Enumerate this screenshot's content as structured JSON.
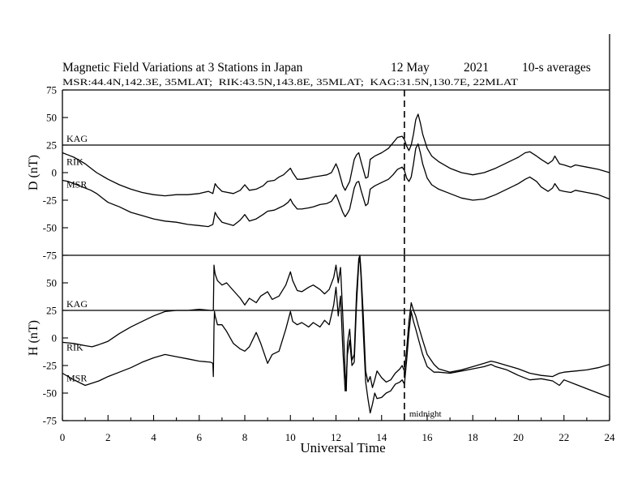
{
  "header": {
    "title": "Magnetic Field Variations at 3 Stations in Japan",
    "date": "12 May",
    "year": "2021",
    "averaging": "10-s averages",
    "stations": "MSR:44.4N,142.3E, 35MLAT;  RIK:43.5N,143.8E, 35MLAT;  KAG:31.5N,130.7E, 22MLAT"
  },
  "chart_data": [
    {
      "type": "line",
      "ylabel": "D (nT)",
      "xlim": [
        0,
        24
      ],
      "ylim": [
        -75,
        75
      ],
      "yticks": [
        75,
        50,
        25,
        0,
        -25,
        -50,
        -75
      ],
      "grid": false,
      "vline": {
        "x": 15,
        "style": "dashed"
      },
      "series": [
        {
          "name": "KAG",
          "x": [
            0,
            24
          ],
          "y": [
            25,
            25
          ]
        },
        {
          "name": "RIK",
          "x": [
            0,
            0.25,
            0.5,
            0.75,
            1,
            1.25,
            1.5,
            1.75,
            2,
            2.5,
            3,
            3.5,
            4,
            4.5,
            5,
            5.5,
            6,
            6.4,
            6.6,
            6.7,
            6.8,
            7,
            7.5,
            7.8,
            8,
            8.2,
            8.5,
            8.8,
            9,
            9.3,
            9.5,
            9.7,
            9.9,
            10,
            10.1,
            10.3,
            10.5,
            10.8,
            11,
            11.3,
            11.6,
            11.8,
            12,
            12.1,
            12.3,
            12.4,
            12.5,
            12.6,
            12.8,
            12.9,
            13,
            13.1,
            13.3,
            13.4,
            13.5,
            13.7,
            14,
            14.3,
            14.5,
            14.7,
            14.9,
            15,
            15.1,
            15.2,
            15.3,
            15.4,
            15.5,
            15.6,
            15.7,
            15.8,
            16,
            16.2,
            16.5,
            17,
            17.5,
            18,
            18.5,
            19,
            19.5,
            20,
            20.3,
            20.5,
            20.8,
            21,
            21.3,
            21.5,
            21.6,
            21.8,
            22,
            22.3,
            22.5,
            23,
            23.5,
            24
          ],
          "y": [
            18,
            16,
            14,
            11,
            8,
            4,
            0,
            -3,
            -6,
            -11,
            -15,
            -18,
            -20,
            -21,
            -20,
            -20,
            -19,
            -17,
            -19,
            -10,
            -13,
            -17,
            -19,
            -16,
            -11,
            -16,
            -15,
            -12,
            -8,
            -7,
            -4,
            -2,
            2,
            4,
            0,
            -6,
            -6,
            -5,
            -4,
            -3,
            -2,
            0,
            8,
            3,
            -12,
            -16,
            -12,
            -8,
            12,
            16,
            18,
            10,
            -5,
            -4,
            12,
            15,
            18,
            22,
            27,
            32,
            33,
            30,
            24,
            20,
            25,
            35,
            48,
            53,
            45,
            35,
            22,
            15,
            10,
            4,
            0,
            -2,
            0,
            4,
            9,
            14,
            18,
            19,
            15,
            12,
            8,
            11,
            15,
            8,
            7,
            5,
            7,
            5,
            3,
            0
          ]
        },
        {
          "name": "MSR",
          "x": [
            0,
            0.25,
            0.5,
            0.75,
            1,
            1.25,
            1.5,
            1.75,
            2,
            2.5,
            3,
            3.5,
            4,
            4.5,
            5,
            5.5,
            6,
            6.4,
            6.6,
            6.7,
            6.8,
            7,
            7.5,
            7.8,
            8,
            8.2,
            8.5,
            8.8,
            9,
            9.3,
            9.5,
            9.7,
            9.9,
            10,
            10.1,
            10.3,
            10.5,
            10.8,
            11,
            11.3,
            11.6,
            11.8,
            12,
            12.1,
            12.3,
            12.4,
            12.5,
            12.6,
            12.8,
            12.9,
            13,
            13.1,
            13.3,
            13.4,
            13.5,
            13.7,
            14,
            14.3,
            14.5,
            14.7,
            14.9,
            15,
            15.1,
            15.2,
            15.3,
            15.4,
            15.5,
            15.6,
            15.7,
            15.8,
            16,
            16.2,
            16.5,
            17,
            17.5,
            18,
            18.5,
            19,
            19.5,
            20,
            20.3,
            20.5,
            20.8,
            21,
            21.3,
            21.5,
            21.6,
            21.8,
            22,
            22.3,
            22.5,
            23,
            23.5,
            24
          ],
          "y": [
            -7,
            -8,
            -10,
            -12,
            -14,
            -16,
            -19,
            -23,
            -27,
            -31,
            -36,
            -39,
            -42,
            -44,
            -45,
            -47,
            -48,
            -49,
            -47,
            -36,
            -40,
            -45,
            -48,
            -43,
            -38,
            -44,
            -42,
            -38,
            -35,
            -34,
            -32,
            -30,
            -27,
            -24,
            -28,
            -33,
            -33,
            -32,
            -31,
            -29,
            -28,
            -26,
            -20,
            -25,
            -36,
            -40,
            -37,
            -33,
            -14,
            -9,
            -8,
            -16,
            -30,
            -28,
            -15,
            -12,
            -9,
            -6,
            -2,
            3,
            5,
            2,
            -5,
            -8,
            -4,
            8,
            22,
            26,
            18,
            8,
            -5,
            -11,
            -15,
            -19,
            -23,
            -25,
            -24,
            -20,
            -15,
            -10,
            -6,
            -4,
            -8,
            -13,
            -17,
            -14,
            -10,
            -16,
            -17,
            -18,
            -16,
            -18,
            -20,
            -24
          ]
        }
      ]
    },
    {
      "type": "line",
      "ylabel": "H (nT)",
      "xlabel": "Universal Time",
      "xlim": [
        0,
        24
      ],
      "ylim": [
        -75,
        75
      ],
      "xticks": [
        0,
        2,
        4,
        6,
        8,
        10,
        12,
        14,
        16,
        18,
        20,
        22,
        24
      ],
      "yticks": [
        50,
        25,
        0,
        -25,
        -50,
        -75
      ],
      "grid": false,
      "vline": {
        "x": 15,
        "style": "dashed",
        "label": "midnight"
      },
      "series": [
        {
          "name": "KAG",
          "x": [
            0,
            24
          ],
          "y": [
            25,
            25
          ]
        },
        {
          "name": "RIK",
          "x": [
            0,
            0.5,
            1,
            1.3,
            1.6,
            2,
            2.5,
            3,
            3.5,
            4,
            4.5,
            5,
            5.5,
            6,
            6.5,
            6.6,
            6.62,
            6.65,
            6.67,
            6.7,
            6.8,
            7,
            7.2,
            7.5,
            7.8,
            8,
            8.2,
            8.5,
            8.7,
            9,
            9.2,
            9.5,
            9.8,
            10,
            10.1,
            10.3,
            10.5,
            10.8,
            11,
            11.3,
            11.5,
            11.7,
            11.9,
            12,
            12.1,
            12.2,
            12.3,
            12.4,
            12.45,
            12.5,
            12.6,
            12.7,
            12.8,
            12.9,
            13,
            13.05,
            13.1,
            13.2,
            13.3,
            13.4,
            13.5,
            13.6,
            13.7,
            13.8,
            14,
            14.2,
            14.4,
            14.6,
            14.8,
            14.9,
            15,
            15.1,
            15.2,
            15.3,
            15.4,
            15.5,
            15.6,
            15.8,
            16,
            16.3,
            16.5,
            17,
            17.5,
            18,
            18.5,
            18.8,
            19,
            19.5,
            20,
            20.5,
            21,
            21.5,
            21.8,
            22,
            22.5,
            23,
            23.5,
            24
          ],
          "y": [
            -4,
            -5,
            -7,
            -8,
            -6,
            -3,
            4,
            10,
            15,
            20,
            24,
            25,
            25,
            26,
            25,
            25,
            25,
            66,
            62,
            58,
            52,
            48,
            50,
            43,
            36,
            30,
            36,
            32,
            38,
            42,
            35,
            38,
            48,
            60,
            52,
            43,
            42,
            46,
            48,
            44,
            40,
            44,
            55,
            66,
            50,
            64,
            20,
            -30,
            -48,
            -5,
            8,
            -20,
            -15,
            40,
            72,
            75,
            60,
            20,
            -30,
            -40,
            -35,
            -45,
            -38,
            -30,
            -36,
            -40,
            -38,
            -32,
            -28,
            -25,
            -30,
            -10,
            15,
            32,
            25,
            20,
            12,
            -2,
            -15,
            -24,
            -28,
            -31,
            -29,
            -26,
            -23,
            -21,
            -22,
            -25,
            -28,
            -32,
            -34,
            -35,
            -32,
            -31,
            -30,
            -29,
            -27,
            -24
          ]
        },
        {
          "name": "MSR",
          "x": [
            0,
            0.5,
            1,
            1.3,
            1.6,
            2,
            2.5,
            3,
            3.5,
            4,
            4.5,
            5,
            5.5,
            6,
            6.5,
            6.6,
            6.62,
            6.65,
            6.67,
            6.7,
            6.8,
            7,
            7.2,
            7.5,
            7.8,
            8,
            8.2,
            8.5,
            8.7,
            9,
            9.2,
            9.5,
            9.8,
            10,
            10.1,
            10.3,
            10.5,
            10.8,
            11,
            11.3,
            11.5,
            11.7,
            11.9,
            12,
            12.1,
            12.2,
            12.3,
            12.4,
            12.45,
            12.5,
            12.6,
            12.7,
            12.8,
            12.9,
            13,
            13.05,
            13.1,
            13.2,
            13.3,
            13.4,
            13.5,
            13.6,
            13.7,
            13.8,
            14,
            14.2,
            14.4,
            14.6,
            14.8,
            14.9,
            15,
            15.1,
            15.2,
            15.3,
            15.4,
            15.5,
            15.6,
            15.8,
            16,
            16.3,
            16.5,
            17,
            17.5,
            18,
            18.5,
            18.8,
            19,
            19.5,
            20,
            20.5,
            21,
            21.5,
            21.8,
            22,
            22.5,
            23,
            23.5,
            24
          ],
          "y": [
            -32,
            -38,
            -43,
            -41,
            -39,
            -35,
            -31,
            -27,
            -22,
            -18,
            -15,
            -17,
            -19,
            -21,
            -22,
            -23,
            -35,
            10,
            24,
            20,
            12,
            12,
            6,
            -5,
            -10,
            -12,
            -8,
            5,
            -5,
            -23,
            -15,
            -12,
            8,
            24,
            15,
            12,
            14,
            10,
            14,
            10,
            16,
            12,
            30,
            46,
            20,
            38,
            -10,
            -48,
            -40,
            -15,
            -2,
            -25,
            -22,
            30,
            68,
            72,
            55,
            5,
            -40,
            -55,
            -68,
            -60,
            -50,
            -55,
            -54,
            -50,
            -48,
            -42,
            -40,
            -38,
            -42,
            -20,
            5,
            24,
            15,
            8,
            0,
            -15,
            -26,
            -31,
            -31,
            -32,
            -30,
            -28,
            -26,
            -24,
            -26,
            -29,
            -34,
            -38,
            -37,
            -39,
            -43,
            -38,
            -42,
            -46,
            -50,
            -54
          ]
        }
      ]
    }
  ]
}
